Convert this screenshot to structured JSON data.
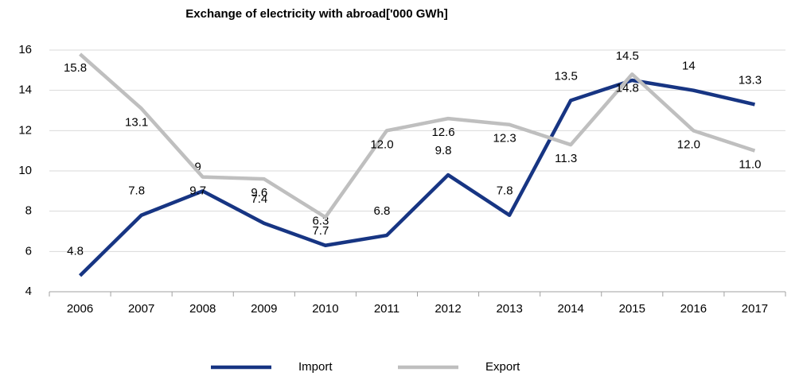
{
  "chart_data": {
    "type": "line",
    "title": "Exchange of electricity with abroad['000 GWh]",
    "categories": [
      "2006",
      "2007",
      "2008",
      "2009",
      "2010",
      "2011",
      "2012",
      "2013",
      "2014",
      "2015",
      "2016",
      "2017"
    ],
    "series": [
      {
        "name": "Import",
        "color": "#173583",
        "values": [
          4.8,
          7.8,
          9.0,
          7.4,
          6.3,
          6.8,
          9.8,
          7.8,
          13.5,
          14.5,
          14.0,
          13.3
        ]
      },
      {
        "name": "Export",
        "color": "#bfbfbf",
        "values": [
          15.8,
          13.1,
          9.7,
          9.6,
          7.7,
          12.0,
          12.6,
          12.3,
          11.3,
          14.8,
          12.0,
          11.0
        ],
        "value_labels": [
          "15.8",
          "13.1",
          "9.7",
          "9.6",
          "7.7",
          "12.0",
          "12.6",
          "12.3",
          "11.3",
          "14.8",
          "12.0",
          "11.0"
        ]
      }
    ],
    "ylim": [
      4,
      16
    ],
    "yticks": [
      4,
      6,
      8,
      10,
      12,
      14,
      16
    ],
    "grid": true,
    "legend": "bottom"
  }
}
